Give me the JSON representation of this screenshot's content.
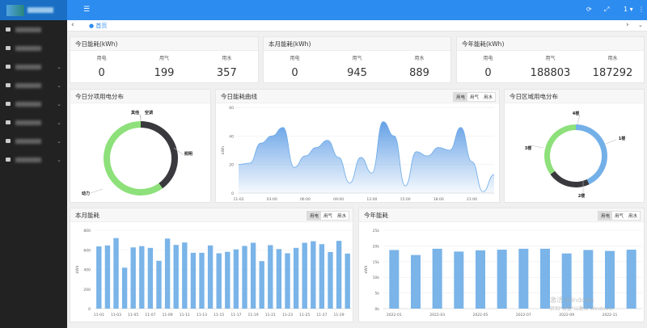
{
  "header": {
    "menu_icon": "menu-icon",
    "refresh_icon": "refresh-icon",
    "fullscreen_icon": "fullscreen-icon",
    "user": "1",
    "more_icon": "more-icon"
  },
  "tabs": {
    "home": "首页"
  },
  "sidebar": {
    "items": [
      {
        "icon": "home-icon",
        "has_children": false
      },
      {
        "icon": "home-icon",
        "has_children": false
      },
      {
        "icon": "chart-icon",
        "has_children": true
      },
      {
        "icon": "folder-icon",
        "has_children": true
      },
      {
        "icon": "folder-icon",
        "has_children": true
      },
      {
        "icon": "bell-icon",
        "has_children": true
      },
      {
        "icon": "monitor-icon",
        "has_children": true
      },
      {
        "icon": "gear-icon",
        "has_children": true
      }
    ]
  },
  "summary": [
    {
      "title": "今日能耗(kWh)",
      "items": [
        {
          "label": "用电",
          "value": "0"
        },
        {
          "label": "用气",
          "value": "199"
        },
        {
          "label": "用水",
          "value": "357"
        }
      ]
    },
    {
      "title": "本月能耗(kWh)",
      "items": [
        {
          "label": "用电",
          "value": "0"
        },
        {
          "label": "用气",
          "value": "945"
        },
        {
          "label": "用水",
          "value": "889"
        }
      ]
    },
    {
      "title": "今年能耗(kWh)",
      "items": [
        {
          "label": "用电",
          "value": "0"
        },
        {
          "label": "用气",
          "value": "188803"
        },
        {
          "label": "用水",
          "value": "187292"
        }
      ]
    }
  ],
  "toggle": {
    "elec": "用电",
    "gas": "用气",
    "water": "用水"
  },
  "watermark": {
    "line1": "激活 Windows",
    "line2": "转到\"设置\"以激活 Windows。"
  },
  "chart_data": [
    {
      "type": "pie",
      "title": "今日分项用电分布",
      "donut": true,
      "labels": [
        "照明",
        "动力",
        "其他",
        "空调"
      ],
      "values": [
        40,
        60,
        0,
        0
      ],
      "colors": [
        "#3a3a3e",
        "#8de07a",
        "#c8b89a",
        "#c8b89a"
      ]
    },
    {
      "type": "area",
      "title": "今日能耗曲线",
      "ylabel": "kWh",
      "ylim": [
        0,
        60
      ],
      "yticks": [
        0,
        20,
        40,
        60
      ],
      "x": [
        "00:00",
        "01:00",
        "02:00",
        "03:00",
        "04:00",
        "05:00",
        "06:00",
        "07:00",
        "08:00",
        "09:00",
        "10:00",
        "11:00",
        "12:00",
        "13:00",
        "14:00",
        "15:00",
        "16:00",
        "17:00",
        "18:00",
        "19:00",
        "20:00",
        "21:00",
        "22:00",
        "23:00"
      ],
      "xtick_labels": [
        "11-02",
        "03:00",
        "06:00",
        "09:00",
        "12:00",
        "15:00",
        "18:00",
        "21:00"
      ],
      "values": [
        20,
        21,
        35,
        40,
        46,
        18,
        26,
        32,
        37,
        25,
        7,
        25,
        14,
        50,
        40,
        5,
        29,
        26,
        32,
        30,
        46,
        22,
        1,
        13
      ],
      "color": "#6aaae8",
      "grid": true
    },
    {
      "type": "pie",
      "title": "今日区域用电分布",
      "donut": true,
      "labels": [
        "1楼",
        "2楼",
        "3楼",
        "4楼"
      ],
      "values": [
        43,
        22,
        35,
        0
      ],
      "colors": [
        "#74b0e8",
        "#3a3a3e",
        "#8de07a",
        "#e8b48a"
      ]
    },
    {
      "type": "bar",
      "title": "本月能耗",
      "ylabel": "kWh",
      "ylim": [
        0,
        800
      ],
      "yticks": [
        0,
        200,
        400,
        600,
        800
      ],
      "categories": [
        "11-01",
        "11-02",
        "11-03",
        "11-04",
        "11-05",
        "11-06",
        "11-07",
        "11-08",
        "11-09",
        "11-10",
        "11-11",
        "11-12",
        "11-13",
        "11-14",
        "11-15",
        "11-16",
        "11-17",
        "11-18",
        "11-19",
        "11-20",
        "11-21",
        "11-22",
        "11-23",
        "11-24",
        "11-25",
        "11-26",
        "11-27",
        "11-28",
        "11-29",
        "11-30"
      ],
      "values": [
        635,
        645,
        720,
        418,
        625,
        638,
        620,
        488,
        715,
        650,
        675,
        570,
        570,
        645,
        565,
        580,
        605,
        640,
        672,
        485,
        648,
        608,
        565,
        620,
        672,
        688,
        658,
        578,
        692,
        562
      ],
      "color": "#7ab4e8",
      "grid": true
    },
    {
      "type": "bar",
      "title": "今年能耗",
      "ylabel": "kWh",
      "ylim": [
        0,
        25000
      ],
      "yticks": [
        "0k",
        "5k",
        "10k",
        "15k",
        "20k",
        "25k"
      ],
      "categories": [
        "2022-01",
        "2022-02",
        "2022-03",
        "2022-04",
        "2022-05",
        "2022-06",
        "2022-07",
        "2022-08",
        "2022-09",
        "2022-10",
        "2022-11",
        "2022-12"
      ],
      "values": [
        18700,
        17100,
        19100,
        18200,
        18600,
        18800,
        19100,
        19100,
        17600,
        18700,
        18400,
        18800
      ],
      "color": "#7ab4e8",
      "grid": true
    }
  ]
}
